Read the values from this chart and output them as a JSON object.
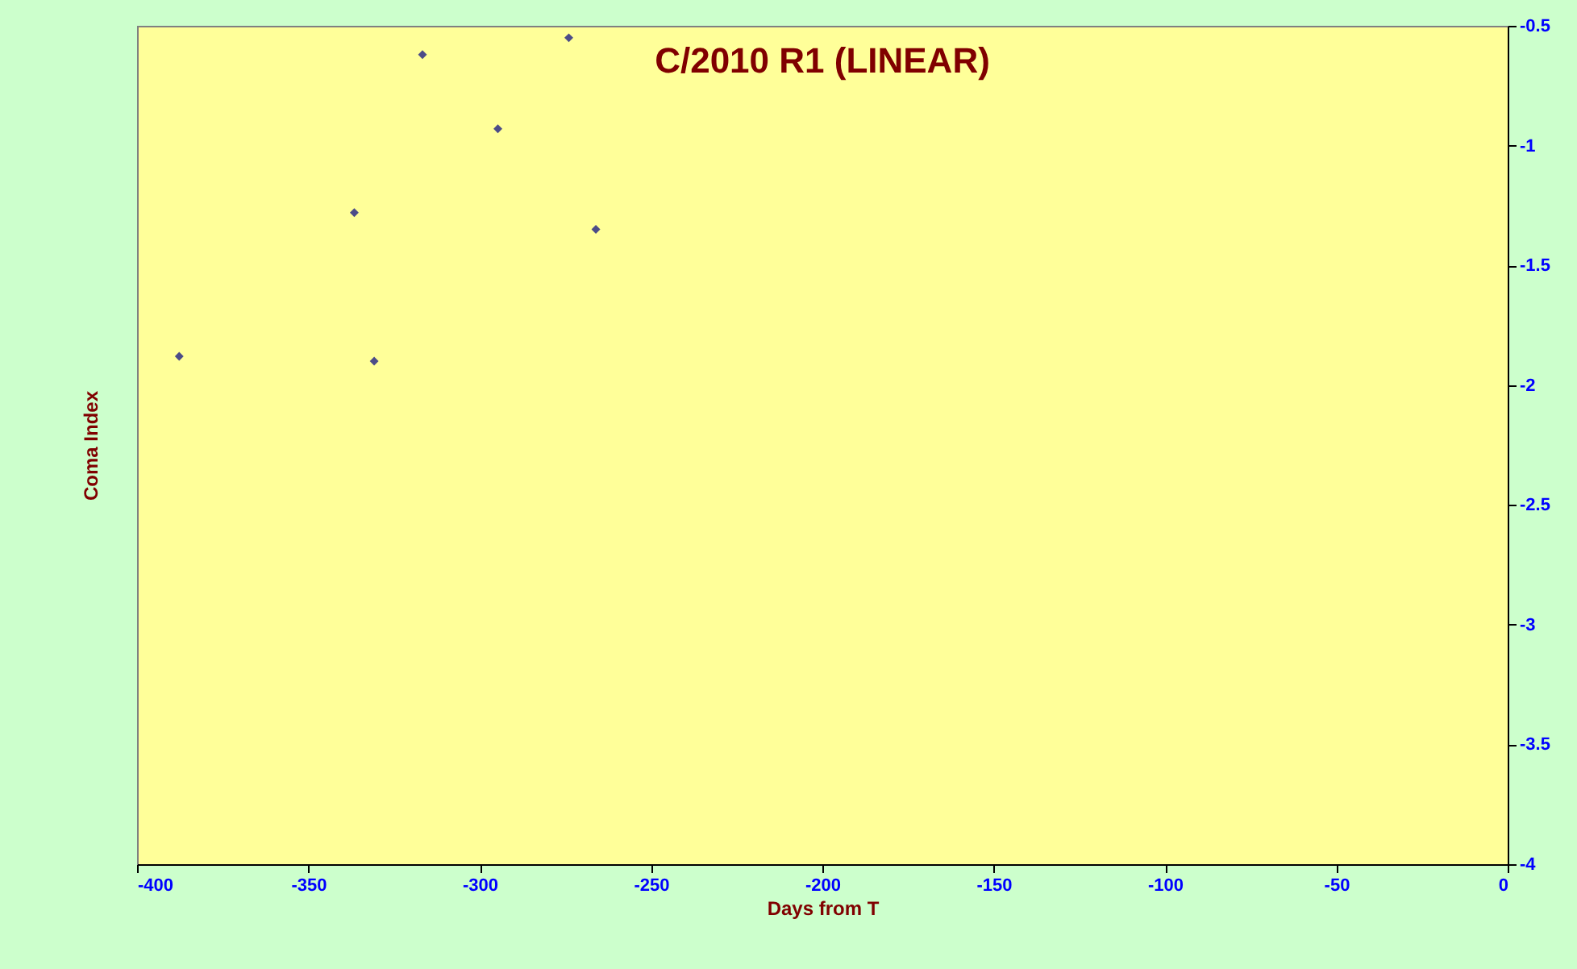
{
  "chart_data": {
    "type": "scatter",
    "title": "C/2010 R1 (LINEAR)",
    "xlabel": "Days from T",
    "ylabel": "Coma Index",
    "x": [
      -387.7,
      -336.6,
      -330.8,
      -316.7,
      -294.7,
      -274.0,
      -266.1
    ],
    "series": [
      {
        "color": "#000080",
        "values": [
          -1.88,
          -1.28,
          -1.9,
          -0.62,
          -0.93,
          -0.55,
          -1.35
        ]
      }
    ],
    "xlim": [
      -400,
      0
    ],
    "xticks": [
      -400,
      -350,
      -300,
      -250,
      -200,
      -150,
      -100,
      -50,
      0
    ],
    "ylim": [
      -4,
      -0.5
    ],
    "yticks": [
      -0.5,
      -1,
      -1.5,
      -2,
      -2.5,
      -3,
      -3.5,
      -4
    ],
    "grid": false,
    "marker": "diamond"
  }
}
